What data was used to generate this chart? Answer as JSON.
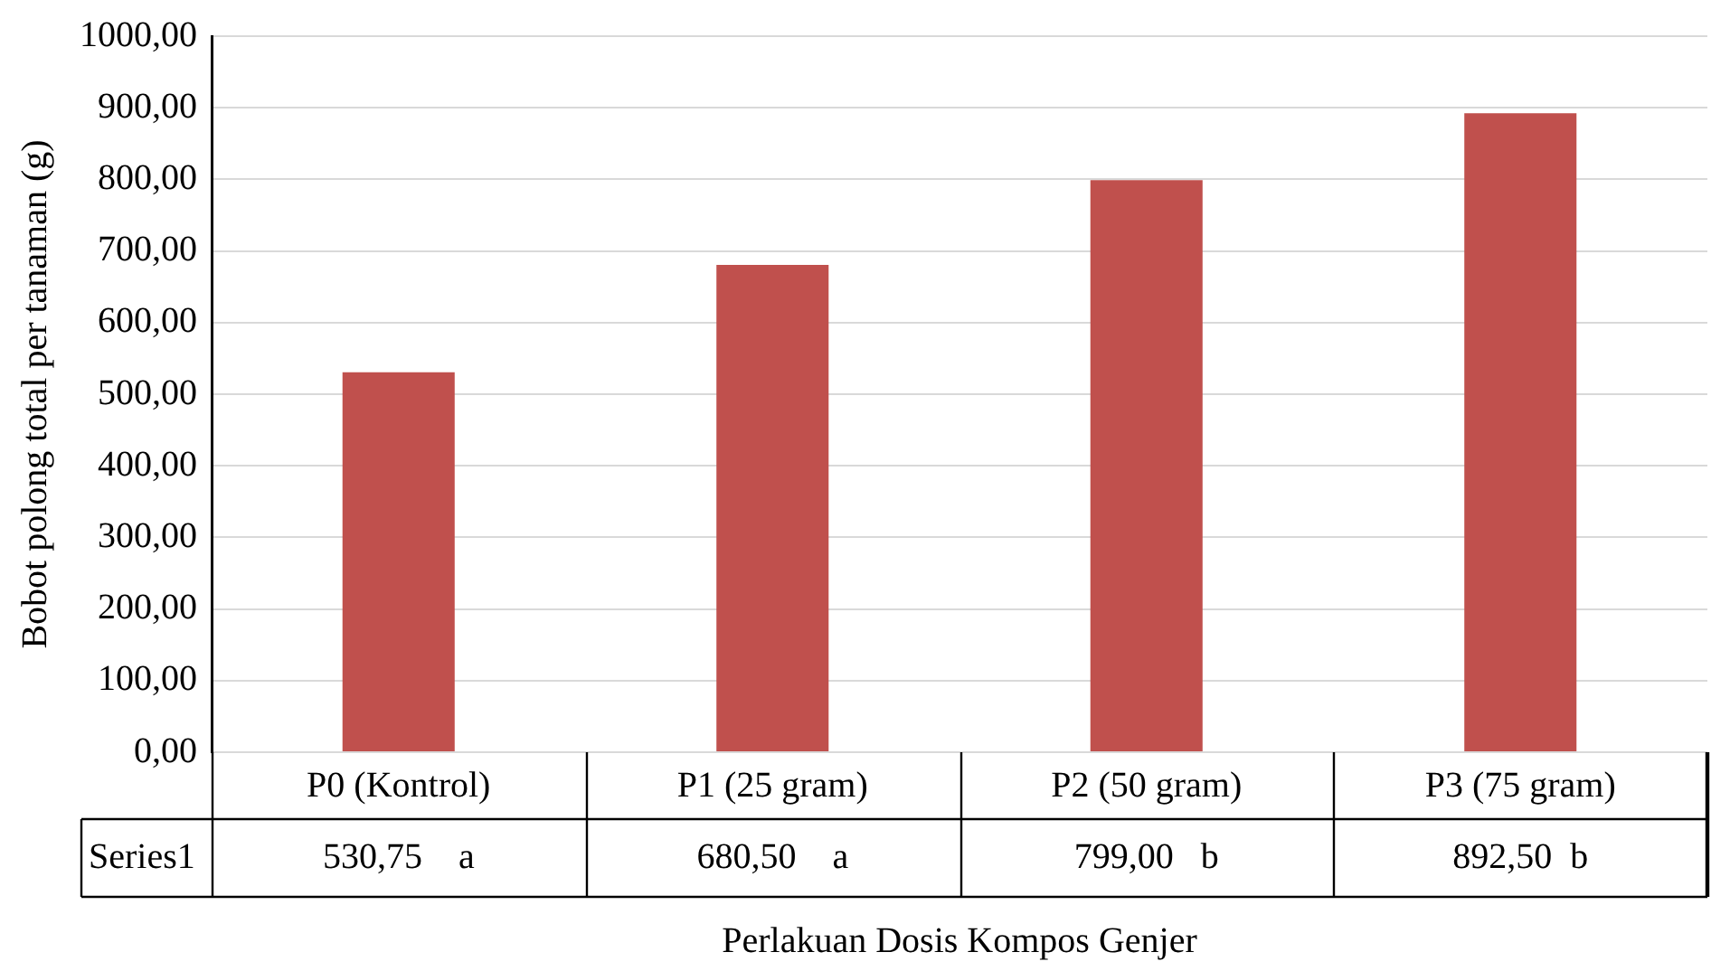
{
  "chart_data": {
    "type": "bar",
    "xlabel": "Perlakuan Dosis Kompos Genjer",
    "ylabel": "Bobot polong total per tanaman (g)",
    "categories": [
      "P0 (Kontrol)",
      "P1 (25 gram)",
      "P2 (50 gram)",
      "P3 (75 gram)"
    ],
    "series": [
      {
        "name": "Series1",
        "color": "#c0504d",
        "values": [
          530.75,
          680.5,
          799,
          892.5
        ],
        "value_labels": [
          "530,75    a",
          "680,50    a",
          "799,00   b",
          "892,50  b"
        ]
      }
    ],
    "ylim": [
      0,
      1000
    ],
    "yticks": [
      {
        "value": 0,
        "label": "0,00"
      },
      {
        "value": 100,
        "label": "100,00"
      },
      {
        "value": 200,
        "label": "200,00"
      },
      {
        "value": 300,
        "label": "300,00"
      },
      {
        "value": 400,
        "label": "400,00"
      },
      {
        "value": 500,
        "label": "500,00"
      },
      {
        "value": 600,
        "label": "600,00"
      },
      {
        "value": 700,
        "label": "700,00"
      },
      {
        "value": 800,
        "label": "800,00"
      },
      {
        "value": 900,
        "label": "900,00"
      },
      {
        "value": 1000,
        "label": "1000,00"
      }
    ],
    "grid": "y"
  }
}
